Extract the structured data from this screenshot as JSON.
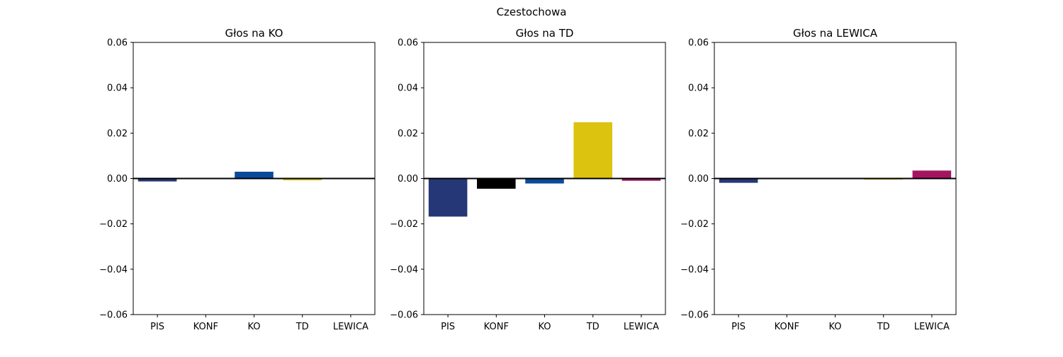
{
  "suptitle": "Czestochowa",
  "chart_data": [
    {
      "type": "bar",
      "title": "Głos na KO",
      "categories": [
        "PIS",
        "KONF",
        "KO",
        "TD",
        "LEWICA"
      ],
      "values": [
        -0.0013,
        0.0,
        0.003,
        -0.0008,
        0.0
      ],
      "ylim": [
        -0.06,
        0.06
      ],
      "yticks": [
        -0.06,
        -0.04,
        -0.02,
        0.0,
        0.02,
        0.04,
        0.06
      ],
      "ytick_labels": [
        "−0.06",
        "−0.04",
        "−0.02",
        "0.00",
        "0.02",
        "0.04",
        "0.06"
      ],
      "grid": false
    },
    {
      "type": "bar",
      "title": "Głos na TD",
      "categories": [
        "PIS",
        "KONF",
        "KO",
        "TD",
        "LEWICA"
      ],
      "values": [
        -0.0168,
        -0.0045,
        -0.0022,
        0.0248,
        -0.001
      ],
      "ylim": [
        -0.06,
        0.06
      ],
      "yticks": [
        -0.06,
        -0.04,
        -0.02,
        0.0,
        0.02,
        0.04,
        0.06
      ],
      "ytick_labels": [
        "−0.06",
        "−0.04",
        "−0.02",
        "0.00",
        "0.02",
        "0.04",
        "0.06"
      ],
      "grid": false
    },
    {
      "type": "bar",
      "title": "Głos na LEWICA",
      "categories": [
        "PIS",
        "KONF",
        "KO",
        "TD",
        "LEWICA"
      ],
      "values": [
        -0.0019,
        0.0,
        0.0,
        -0.0005,
        0.0035
      ],
      "ylim": [
        -0.06,
        0.06
      ],
      "yticks": [
        -0.06,
        -0.04,
        -0.02,
        0.0,
        0.02,
        0.04,
        0.06
      ],
      "ytick_labels": [
        "−0.06",
        "−0.04",
        "−0.02",
        "0.00",
        "0.02",
        "0.04",
        "0.06"
      ],
      "grid": false
    }
  ],
  "colors": {
    "PIS": "#263778",
    "KONF": "#000000",
    "KO": "#0a4a9b",
    "TD": "#dcc30f",
    "LEWICA": "#a5155f",
    "zero_line": "#000000",
    "axes": "#000000"
  }
}
